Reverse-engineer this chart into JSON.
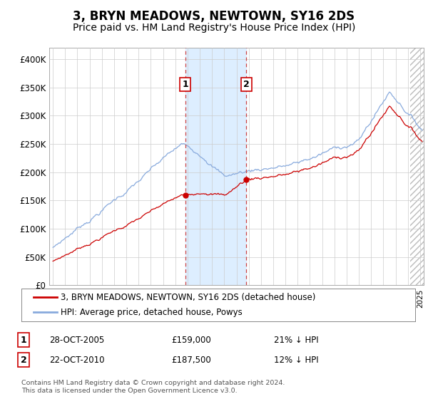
{
  "title": "3, BRYN MEADOWS, NEWTOWN, SY16 2DS",
  "subtitle": "Price paid vs. HM Land Registry's House Price Index (HPI)",
  "title_fontsize": 12,
  "subtitle_fontsize": 10,
  "ylim": [
    0,
    420000
  ],
  "yticks": [
    0,
    50000,
    100000,
    150000,
    200000,
    250000,
    300000,
    350000,
    400000
  ],
  "ytick_labels": [
    "£0",
    "£50K",
    "£100K",
    "£150K",
    "£200K",
    "£250K",
    "£300K",
    "£350K",
    "£400K"
  ],
  "xlim_start": 1994.7,
  "xlim_end": 2025.3,
  "sale1_date": 2005.82,
  "sale1_price": 159000,
  "sale1_label": "1",
  "sale2_date": 2010.81,
  "sale2_price": 187500,
  "sale2_label": "2",
  "sale1_info": "28-OCT-2005",
  "sale1_amount": "£159,000",
  "sale1_hpi": "21% ↓ HPI",
  "sale2_info": "22-OCT-2010",
  "sale2_amount": "£187,500",
  "sale2_hpi": "12% ↓ HPI",
  "line1_label": "3, BRYN MEADOWS, NEWTOWN, SY16 2DS (detached house)",
  "line1_color": "#cc0000",
  "line2_label": "HPI: Average price, detached house, Powys",
  "line2_color": "#88aadd",
  "footer": "Contains HM Land Registry data © Crown copyright and database right 2024.\nThis data is licensed under the Open Government Licence v3.0.",
  "bg_color": "#ffffff",
  "grid_color": "#cccccc",
  "shade_color": "#ddeeff",
  "hatch_start": 2024.17
}
